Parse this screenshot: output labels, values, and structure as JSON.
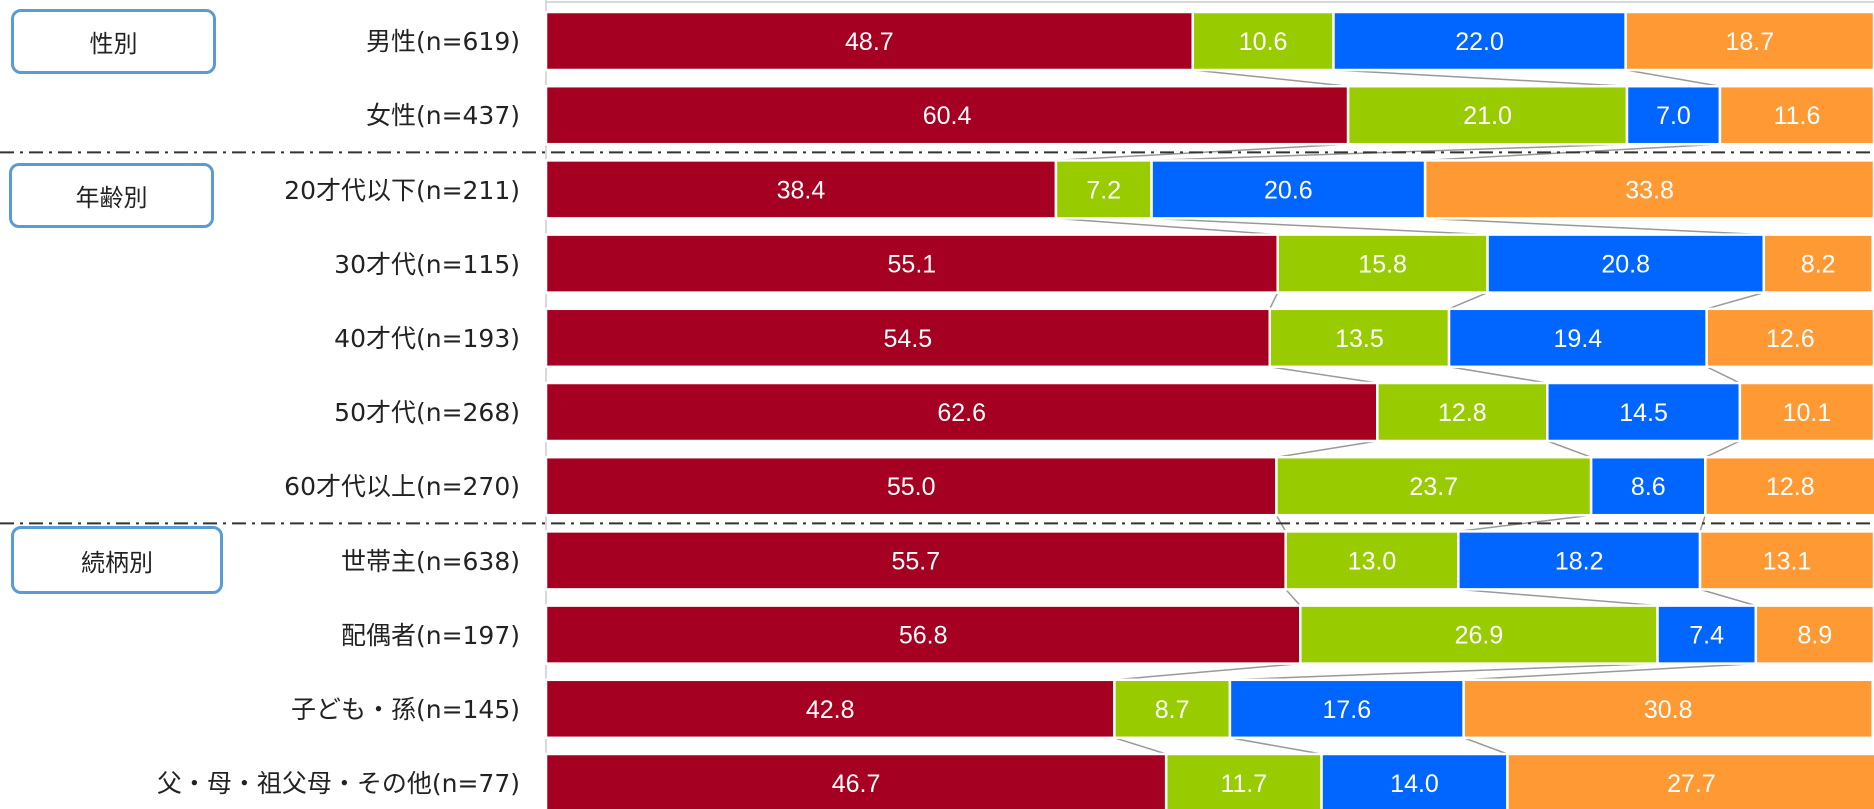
{
  "colors": {
    "series1": "#a50021",
    "series2": "#99cc00",
    "series3": "#0066ff",
    "series4": "#ff9933",
    "connector": "#999999",
    "grid": "#d9d9d9",
    "group_box_border": "#5b9bd5"
  },
  "groups": [
    {
      "label": "性別"
    },
    {
      "label": "年齢別"
    },
    {
      "label": "続柄別"
    }
  ],
  "chart_data": {
    "type": "bar",
    "orientation": "horizontal",
    "stacked": "percent",
    "xlim": [
      0,
      100
    ],
    "categories": [
      "男性(n=619)",
      "女性(n=437)",
      "20才代以下(n=211)",
      "30才代(n=115)",
      "40才代(n=193)",
      "50才代(n=268)",
      "60才代以上(n=270)",
      "世帯主(n=638)",
      "配偶者(n=197)",
      "子ども・孫(n=145)",
      "父・母・祖父母・その他(n=77)"
    ],
    "series": [
      {
        "values": [
          48.7,
          60.4,
          38.4,
          55.1,
          54.5,
          62.6,
          55.0,
          55.7,
          56.8,
          42.8,
          46.7
        ],
        "labels": [
          "48.7",
          "60.4",
          "38.4",
          "55.1",
          "54.5",
          "62.6",
          "55.0",
          "55.7",
          "56.8",
          "42.8",
          "46.7"
        ]
      },
      {
        "values": [
          10.6,
          21.0,
          7.2,
          15.8,
          13.5,
          12.8,
          23.7,
          13.0,
          26.9,
          8.7,
          11.7
        ],
        "labels": [
          "10.6",
          "21.0",
          "7.2",
          "15.8",
          "13.5",
          "12.8",
          "23.7",
          "13.0",
          "26.9",
          "8.7",
          "11.7"
        ]
      },
      {
        "values": [
          22.0,
          7.0,
          20.6,
          20.8,
          19.4,
          14.5,
          8.6,
          18.2,
          7.4,
          17.6,
          14.0
        ],
        "labels": [
          "22.0",
          "7.0",
          "20.6",
          "20.8",
          "19.4",
          "14.5",
          "8.6",
          "18.2",
          "7.4",
          "17.6",
          "14.0"
        ]
      },
      {
        "values": [
          18.7,
          11.6,
          33.8,
          8.2,
          12.6,
          10.1,
          12.8,
          13.1,
          8.9,
          30.8,
          27.7
        ],
        "labels": [
          "18.7",
          "11.6",
          "33.8",
          "8.2",
          "12.6",
          "10.1",
          "12.8",
          "13.1",
          "8.9",
          "30.8",
          "27.7"
        ]
      }
    ],
    "series_lines": true,
    "legend": "none",
    "grid": false
  }
}
